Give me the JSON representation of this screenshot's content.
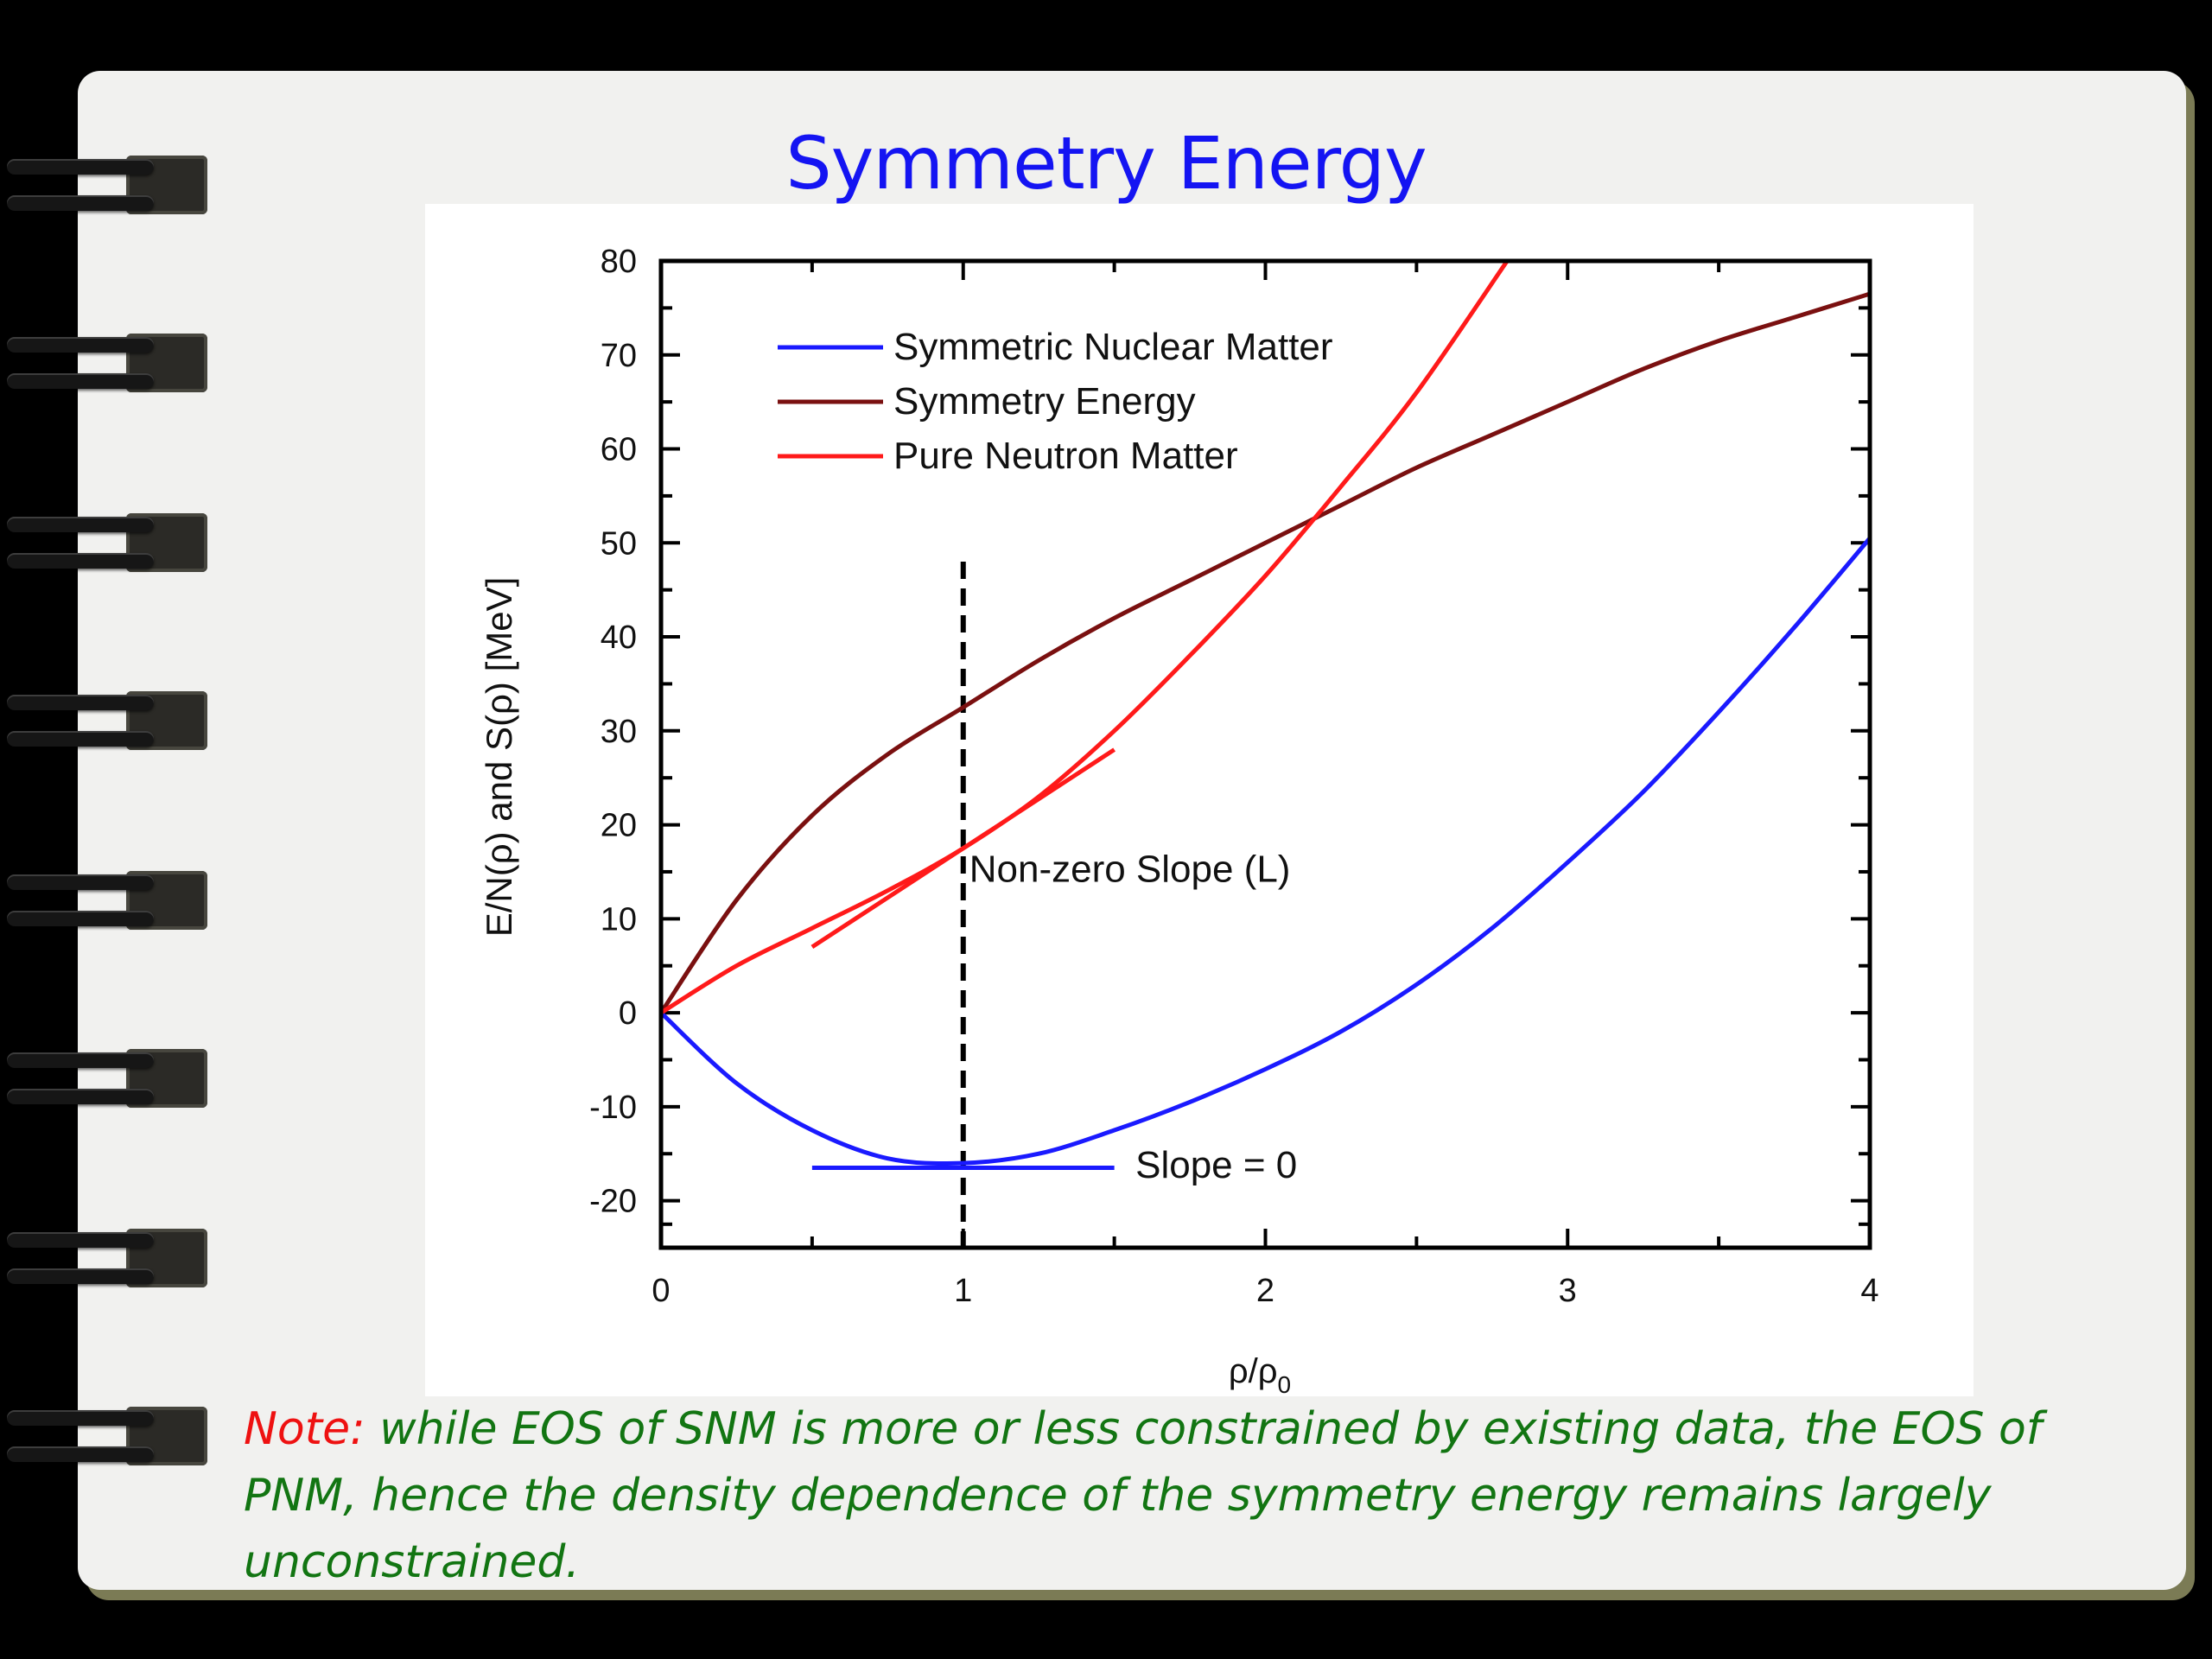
{
  "slide": {
    "title": "Symmetry Energy",
    "note_label": "Note:",
    "note_text": " while EOS of SNM is more or less constrained by existing data, the EOS of PNM, hence the density dependence of the symmetry energy remains largely unconstrained."
  },
  "chart_data": {
    "type": "line",
    "title": "",
    "xlabel": "ρ/ρ",
    "xlabel_sub": "0",
    "ylabel": "E/N(ρ) and S(ρ) [MeV]",
    "xlim": [
      0,
      4
    ],
    "ylim": [
      -25,
      80
    ],
    "xticks": [
      0,
      1,
      2,
      3,
      4
    ],
    "yticks": [
      -20,
      -10,
      0,
      10,
      20,
      30,
      40,
      50,
      60,
      70,
      80
    ],
    "grid": false,
    "legend_position": "top-left",
    "series": [
      {
        "name": "Symmetric Nuclear Matter",
        "color": "#1a1aff",
        "x": [
          0,
          0.25,
          0.5,
          0.75,
          1.0,
          1.25,
          1.5,
          1.75,
          2.0,
          2.25,
          2.5,
          2.75,
          3.0,
          3.25,
          3.5,
          3.75,
          4.0
        ],
        "y": [
          0,
          -7.5,
          -12.5,
          -15.5,
          -16,
          -15,
          -12.5,
          -9.5,
          -6,
          -2,
          3,
          9,
          16,
          23.5,
          32,
          41,
          50.5
        ]
      },
      {
        "name": "Symmetry Energy",
        "color": "#7a1010",
        "x": [
          0,
          0.25,
          0.5,
          0.75,
          1.0,
          1.25,
          1.5,
          1.75,
          2.0,
          2.25,
          2.5,
          2.75,
          3.0,
          3.25,
          3.5,
          3.75,
          4.0
        ],
        "y": [
          0,
          12,
          21,
          27.5,
          32.5,
          37.5,
          42,
          46,
          50,
          54,
          58,
          61.5,
          65,
          68.5,
          71.5,
          74,
          76.5
        ]
      },
      {
        "name": "Pure Neutron Matter",
        "color": "#ff1a1a",
        "x": [
          0,
          0.25,
          0.5,
          0.75,
          1.0,
          1.25,
          1.5,
          1.75,
          2.0,
          2.25,
          2.5,
          2.8
        ],
        "y": [
          0,
          5,
          9,
          13,
          17.5,
          23,
          30,
          38,
          46.5,
          56,
          66,
          80
        ]
      }
    ],
    "annotations": [
      {
        "text": "Non-zero Slope (L)",
        "x": 1.02,
        "y": 15
      },
      {
        "text": "Slope = 0",
        "x": 1.57,
        "y": -16.5
      }
    ],
    "reference_lines": [
      {
        "kind": "vertical-dashed",
        "x": 1,
        "y_range": [
          -25,
          48
        ]
      },
      {
        "kind": "tangent",
        "name": "Non-zero Slope (L)",
        "color": "#ff1a1a",
        "x": [
          0.5,
          1.5
        ],
        "y": [
          7,
          28
        ]
      },
      {
        "kind": "tangent",
        "name": "Slope = 0",
        "color": "#1a1aff",
        "x": [
          0.5,
          1.5
        ],
        "y": [
          -16.5,
          -16.5
        ]
      }
    ]
  }
}
